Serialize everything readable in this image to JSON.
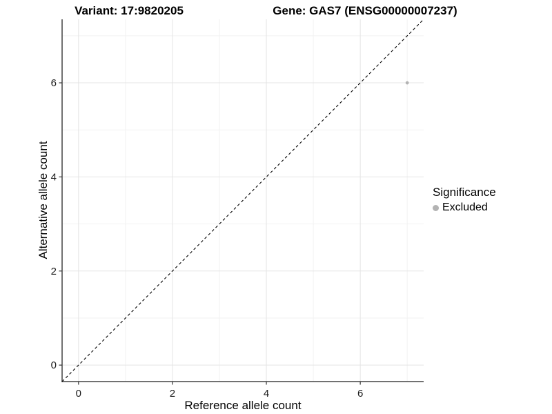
{
  "header": {
    "variant_title": "Variant: 17:9820205",
    "gene_title": "Gene: GAS7 (ENSG00000007237)"
  },
  "legend": {
    "title": "Significance",
    "position": "right",
    "items": [
      {
        "label": "Excluded",
        "color": "#b3b3b3",
        "marker": "circle"
      }
    ]
  },
  "chart_data": {
    "type": "scatter",
    "title": "Variant: 17:9820205 — Gene: GAS7 (ENSG00000007237)",
    "xlabel": "Reference allele count",
    "ylabel": "Alternative allele count",
    "xlim": [
      -0.35,
      7.35
    ],
    "ylim": [
      -0.35,
      7.35
    ],
    "x_major_ticks": [
      0,
      2,
      4,
      6
    ],
    "y_major_ticks": [
      0,
      2,
      4,
      6
    ],
    "x_minor_gridlines": [
      1,
      3,
      5,
      7
    ],
    "y_minor_gridlines": [
      1,
      3,
      5,
      7
    ],
    "grid": "major and minor on, white panel background",
    "legend_position": "right",
    "series": [
      {
        "name": "Excluded",
        "color": "#b3b3b3",
        "marker": "circle",
        "points": [
          {
            "x": 7,
            "y": 6
          }
        ]
      }
    ],
    "reference_line": {
      "kind": "identity",
      "equation": "y = x",
      "style": "dashed",
      "color": "#000000"
    }
  },
  "colors": {
    "background": "#ffffff",
    "grid_major": "#e4e4e4",
    "grid_minor": "#f2f2f2",
    "axis_line": "#424242",
    "tick_mark": "#333333",
    "tick_label": "#1a1a1a",
    "text": "#000000",
    "point": "#b3b3b3"
  }
}
